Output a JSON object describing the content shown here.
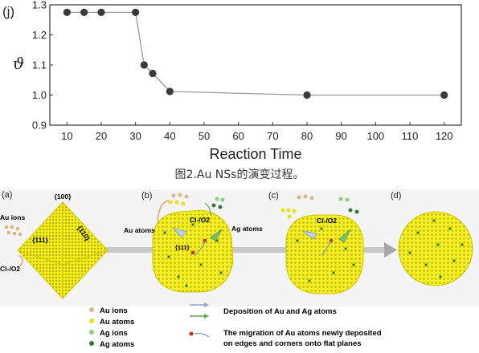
{
  "chart_data": {
    "type": "line",
    "panel_label": "(j)",
    "xlabel": "Reaction Time",
    "ylabel": "ϑ",
    "xlim": [
      5,
      125
    ],
    "ylim": [
      0.9,
      1.3
    ],
    "xticks": [
      10,
      20,
      30,
      40,
      50,
      60,
      70,
      80,
      90,
      100,
      110,
      120
    ],
    "yticks": [
      0.9,
      1.0,
      1.1,
      1.2,
      1.3
    ],
    "ytick_labels": [
      "0.9",
      "1.0",
      "1.1",
      "1.2",
      "1.3"
    ],
    "x": [
      10,
      15,
      20,
      30,
      32.5,
      35,
      40,
      80,
      120
    ],
    "y": [
      1.275,
      1.275,
      1.275,
      1.275,
      1.1,
      1.072,
      1.012,
      1.0,
      1.0
    ],
    "grid": false
  },
  "caption": "图2.Au NSs的演变过程。",
  "scheme": {
    "panels": [
      {
        "label": "(a)",
        "texts": [
          "{100}",
          "{110}",
          "{111}",
          "Au ions",
          "Cl-/O2"
        ]
      },
      {
        "label": "(b)",
        "texts": [
          "Cl-/O2",
          "Au atoms",
          "Ag atoms",
          "{111}"
        ]
      },
      {
        "label": "(c)",
        "texts": [
          "Cl-/O2"
        ]
      },
      {
        "label": "(d)",
        "texts": []
      }
    ],
    "legend_left": [
      "Au ions",
      "Au atoms",
      "Ag ions",
      "Ag atoms"
    ],
    "legend_right": [
      "Deposition of Au and Ag atoms",
      "The migration of Au atoms newly deposited",
      "on edges and corners onto flat planes"
    ],
    "colors": {
      "au_ion": "#d9b98a",
      "au_atom": "#e8e020",
      "ag_ion": "#8fcf7a",
      "ag_atom": "#2e7a3a",
      "crystal": "#f3ee20",
      "migration": "#cc2222"
    }
  }
}
